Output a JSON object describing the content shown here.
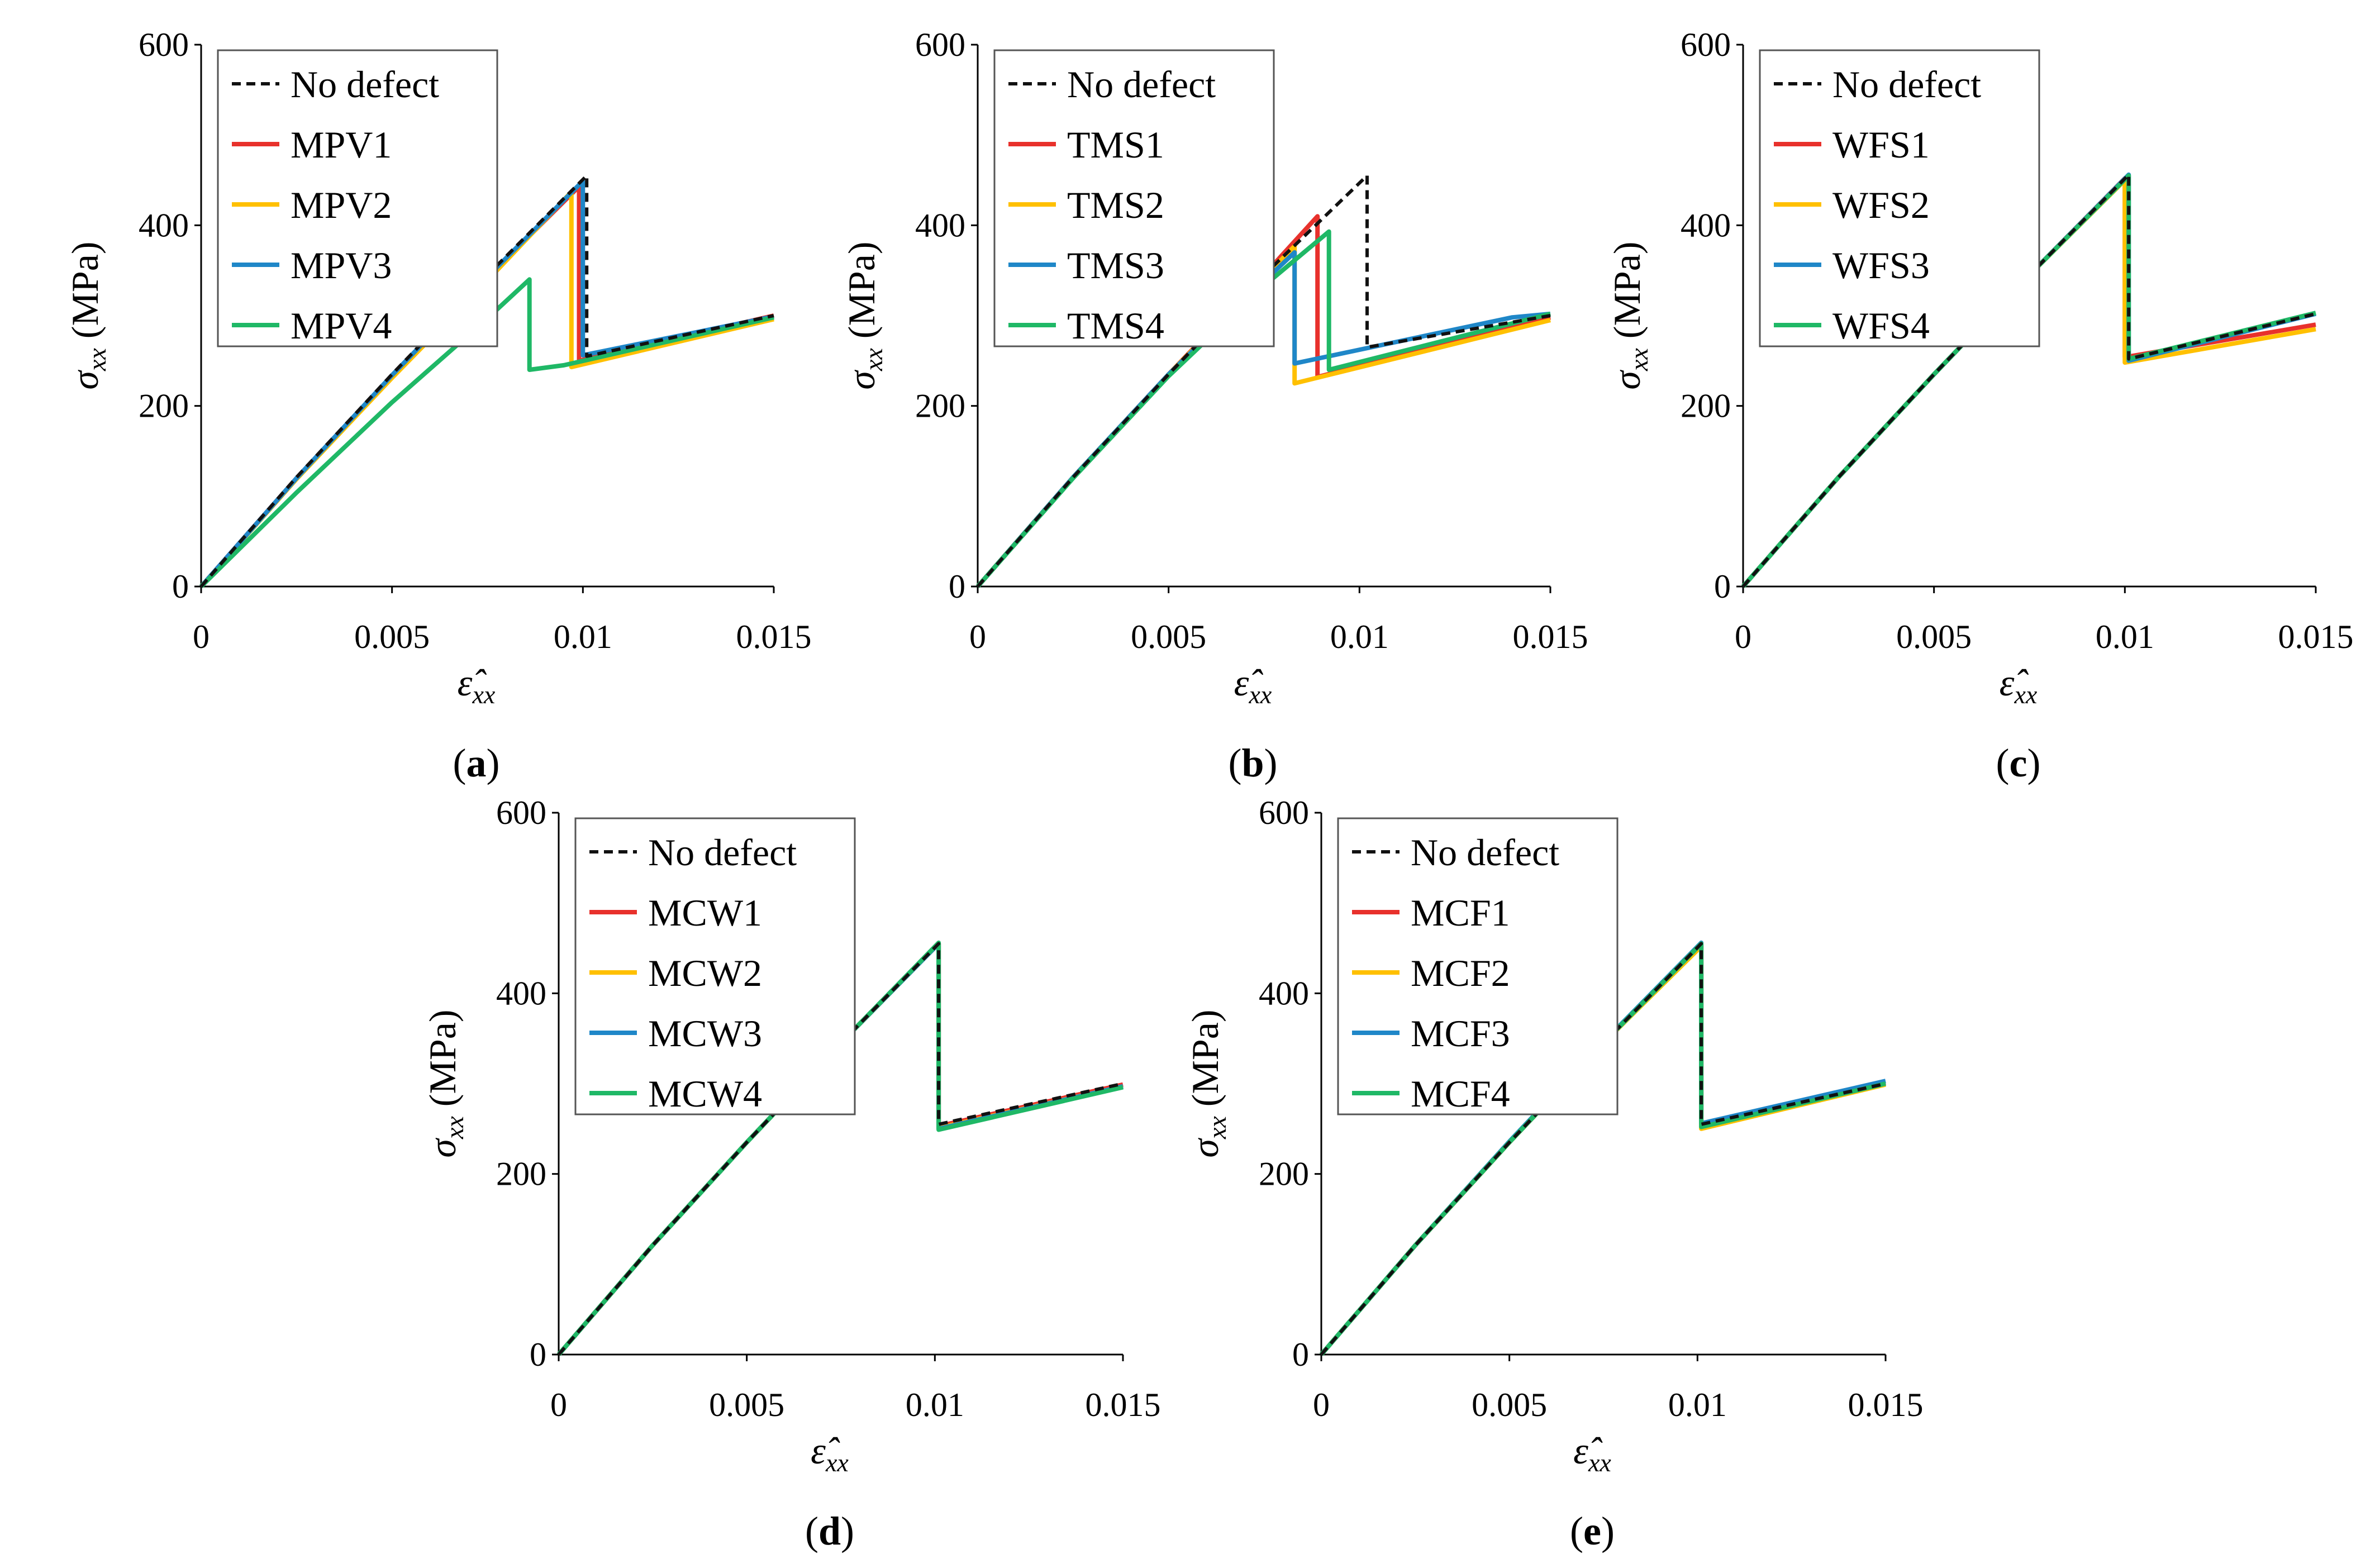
{
  "colors": {
    "no_defect": "#111111",
    "series1": "#e8312c",
    "series2": "#ffc000",
    "series3": "#1f87c8",
    "series4": "#1fb866",
    "axis": "#000000"
  },
  "axis_text": {
    "ylabel_symbol": "σ",
    "ylabel_sub": "xx",
    "ylabel_unit": " (MPa)",
    "xlabel_symbol": "ε̂",
    "xlabel_sub": "xx"
  },
  "chart_data": [
    {
      "type": "line",
      "panel_label": "a",
      "xlim": [
        0,
        0.015
      ],
      "ylim": [
        0,
        600
      ],
      "xticks": [
        0,
        0.005,
        0.01,
        0.015
      ],
      "xtick_labels": [
        "0",
        "0.005",
        "0.01",
        "0.015"
      ],
      "yticks": [
        0,
        200,
        400,
        600
      ],
      "ytick_labels": [
        "0",
        "200",
        "400",
        "600"
      ],
      "legend_position": "top-left",
      "series": [
        {
          "name": "No defect",
          "style": "dashed",
          "x": [
            0,
            0.0025,
            0.005,
            0.0075,
            0.0101,
            0.0101,
            0.015
          ],
          "y": [
            0,
            121,
            235,
            345,
            455,
            255,
            300
          ]
        },
        {
          "name": "MPV1",
          "style": "solid",
          "x": [
            0,
            0.0025,
            0.005,
            0.0075,
            0.0099,
            0.0099,
            0.015
          ],
          "y": [
            0,
            120,
            233,
            342,
            443,
            250,
            300
          ]
        },
        {
          "name": "MPV2",
          "style": "solid",
          "x": [
            0,
            0.0025,
            0.005,
            0.0075,
            0.0097,
            0.0097,
            0.015
          ],
          "y": [
            0,
            119,
            231,
            339,
            437,
            243,
            296
          ]
        },
        {
          "name": "MPV3",
          "style": "solid",
          "x": [
            0,
            0.0025,
            0.005,
            0.0075,
            0.01,
            0.01,
            0.015
          ],
          "y": [
            0,
            120,
            234,
            343,
            449,
            256,
            299
          ]
        },
        {
          "name": "MPV4",
          "style": "solid",
          "x": [
            0,
            0.0025,
            0.005,
            0.0075,
            0.0086,
            0.0086,
            0.0095,
            0.015
          ],
          "y": [
            0,
            104,
            204,
            297,
            340,
            240,
            245,
            298
          ]
        }
      ]
    },
    {
      "type": "line",
      "panel_label": "b",
      "xlim": [
        0,
        0.015
      ],
      "ylim": [
        0,
        600
      ],
      "xticks": [
        0,
        0.005,
        0.01,
        0.015
      ],
      "xtick_labels": [
        "0",
        "0.005",
        "0.01",
        "0.015"
      ],
      "yticks": [
        0,
        200,
        400,
        600
      ],
      "ytick_labels": [
        "0",
        "200",
        "400",
        "600"
      ],
      "legend_position": "top-left",
      "series": [
        {
          "name": "No defect",
          "style": "dashed",
          "x": [
            0,
            0.0025,
            0.005,
            0.0075,
            0.0102,
            0.0102,
            0.015
          ],
          "y": [
            0,
            121,
            235,
            345,
            455,
            265,
            300
          ]
        },
        {
          "name": "TMS1",
          "style": "solid",
          "x": [
            0,
            0.0025,
            0.005,
            0.0075,
            0.0089,
            0.0089,
            0.015
          ],
          "y": [
            0,
            121,
            235,
            345,
            410,
            232,
            298
          ]
        },
        {
          "name": "TMS2",
          "style": "solid",
          "x": [
            0,
            0.0025,
            0.005,
            0.0075,
            0.0083,
            0.0083,
            0.015
          ],
          "y": [
            0,
            121,
            235,
            342,
            377,
            225,
            295
          ]
        },
        {
          "name": "TMS3",
          "style": "solid",
          "x": [
            0,
            0.0025,
            0.005,
            0.0075,
            0.0083,
            0.0083,
            0.014,
            0.015
          ],
          "y": [
            0,
            121,
            235,
            338,
            370,
            247,
            298,
            302
          ]
        },
        {
          "name": "TMS4",
          "style": "solid",
          "x": [
            0,
            0.0025,
            0.005,
            0.0075,
            0.0092,
            0.0092,
            0.015
          ],
          "y": [
            0,
            120,
            233,
            333,
            393,
            240,
            302
          ]
        }
      ]
    },
    {
      "type": "line",
      "panel_label": "c",
      "xlim": [
        0,
        0.015
      ],
      "ylim": [
        0,
        600
      ],
      "xticks": [
        0,
        0.005,
        0.01,
        0.015
      ],
      "xtick_labels": [
        "0",
        "0.005",
        "0.01",
        "0.015"
      ],
      "yticks": [
        0,
        200,
        400,
        600
      ],
      "ytick_labels": [
        "0",
        "200",
        "400",
        "600"
      ],
      "legend_position": "top-left",
      "series": [
        {
          "name": "No defect",
          "style": "dashed",
          "x": [
            0,
            0.0025,
            0.005,
            0.0075,
            0.0101,
            0.0101,
            0.015
          ],
          "y": [
            0,
            121,
            235,
            345,
            456,
            252,
            302
          ]
        },
        {
          "name": "WFS1",
          "style": "solid",
          "x": [
            0,
            0.0025,
            0.005,
            0.0075,
            0.01,
            0.01,
            0.015
          ],
          "y": [
            0,
            121,
            235,
            345,
            452,
            254,
            290
          ]
        },
        {
          "name": "WFS2",
          "style": "solid",
          "x": [
            0,
            0.0025,
            0.005,
            0.0075,
            0.01,
            0.01,
            0.015
          ],
          "y": [
            0,
            121,
            235,
            345,
            450,
            248,
            285
          ]
        },
        {
          "name": "WFS3",
          "style": "solid",
          "x": [
            0,
            0.0025,
            0.005,
            0.0075,
            0.0101,
            0.0101,
            0.015
          ],
          "y": [
            0,
            121,
            235,
            345,
            456,
            250,
            302
          ]
        },
        {
          "name": "WFS4",
          "style": "solid",
          "x": [
            0,
            0.0025,
            0.005,
            0.0075,
            0.0101,
            0.0101,
            0.015
          ],
          "y": [
            0,
            121,
            235,
            345,
            455,
            252,
            303
          ]
        }
      ]
    },
    {
      "type": "line",
      "panel_label": "d",
      "xlim": [
        0,
        0.015
      ],
      "ylim": [
        0,
        600
      ],
      "xticks": [
        0,
        0.005,
        0.01,
        0.015
      ],
      "xtick_labels": [
        "0",
        "0.005",
        "0.01",
        "0.015"
      ],
      "yticks": [
        0,
        200,
        400,
        600
      ],
      "ytick_labels": [
        "0",
        "200",
        "400",
        "600"
      ],
      "legend_position": "top-left",
      "series": [
        {
          "name": "No defect",
          "style": "dashed",
          "x": [
            0,
            0.0025,
            0.005,
            0.0075,
            0.0101,
            0.0101,
            0.015
          ],
          "y": [
            0,
            121,
            235,
            345,
            455,
            255,
            300
          ]
        },
        {
          "name": "MCW1",
          "style": "solid",
          "x": [
            0,
            0.0025,
            0.005,
            0.0075,
            0.0101,
            0.0101,
            0.015
          ],
          "y": [
            0,
            121,
            235,
            345,
            455,
            253,
            299
          ]
        },
        {
          "name": "MCW2",
          "style": "solid",
          "x": [
            0,
            0.0025,
            0.005,
            0.0075,
            0.0101,
            0.0101,
            0.015
          ],
          "y": [
            0,
            121,
            235,
            345,
            455,
            251,
            297
          ]
        },
        {
          "name": "MCW3",
          "style": "solid",
          "x": [
            0,
            0.0025,
            0.005,
            0.0075,
            0.0101,
            0.0101,
            0.015
          ],
          "y": [
            0,
            121,
            235,
            345,
            455,
            250,
            297
          ]
        },
        {
          "name": "MCW4",
          "style": "solid",
          "x": [
            0,
            0.0025,
            0.005,
            0.0075,
            0.0101,
            0.0101,
            0.015
          ],
          "y": [
            0,
            121,
            235,
            345,
            456,
            249,
            296
          ]
        }
      ]
    },
    {
      "type": "line",
      "panel_label": "e",
      "xlim": [
        0,
        0.015
      ],
      "ylim": [
        0,
        600
      ],
      "xticks": [
        0,
        0.005,
        0.01,
        0.015
      ],
      "xtick_labels": [
        "0",
        "0.005",
        "0.01",
        "0.015"
      ],
      "yticks": [
        0,
        200,
        400,
        600
      ],
      "ytick_labels": [
        "0",
        "200",
        "400",
        "600"
      ],
      "legend_position": "top-left",
      "series": [
        {
          "name": "No defect",
          "style": "dashed",
          "x": [
            0,
            0.0025,
            0.005,
            0.0075,
            0.0101,
            0.0101,
            0.015
          ],
          "y": [
            0,
            121,
            235,
            345,
            455,
            255,
            300
          ]
        },
        {
          "name": "MCF1",
          "style": "solid",
          "x": [
            0,
            0.0025,
            0.005,
            0.0075,
            0.0101,
            0.0101,
            0.015
          ],
          "y": [
            0,
            121,
            235,
            345,
            453,
            254,
            301
          ]
        },
        {
          "name": "MCF2",
          "style": "solid",
          "x": [
            0,
            0.0025,
            0.005,
            0.0075,
            0.0101,
            0.0101,
            0.015
          ],
          "y": [
            0,
            121,
            235,
            345,
            452,
            250,
            299
          ]
        },
        {
          "name": "MCF3",
          "style": "solid",
          "x": [
            0,
            0.0025,
            0.005,
            0.0075,
            0.0101,
            0.0101,
            0.015
          ],
          "y": [
            0,
            121,
            236,
            346,
            456,
            256,
            303
          ]
        },
        {
          "name": "MCF4",
          "style": "solid",
          "x": [
            0,
            0.0025,
            0.005,
            0.0075,
            0.0101,
            0.0101,
            0.015
          ],
          "y": [
            0,
            121,
            235,
            345,
            455,
            252,
            300
          ]
        }
      ]
    }
  ]
}
